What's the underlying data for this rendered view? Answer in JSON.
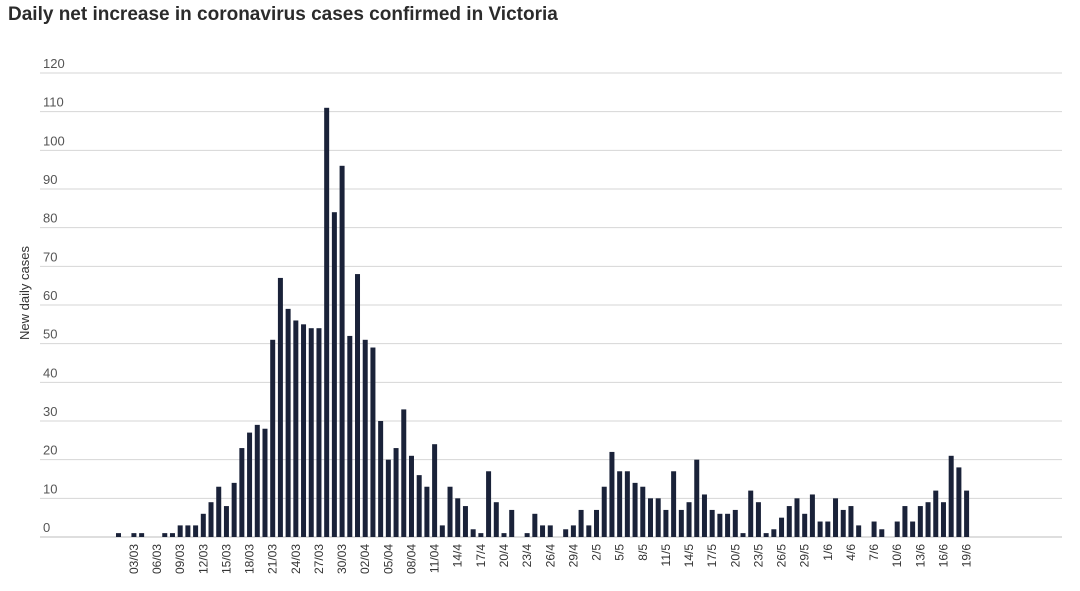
{
  "chart_data": {
    "type": "bar",
    "title": "Daily net increase in coronavirus cases confirmed in Victoria",
    "ylabel": "New daily cases",
    "xlabel": "",
    "ylim": [
      0,
      120
    ],
    "yticks": [
      0,
      10,
      20,
      30,
      40,
      50,
      60,
      70,
      80,
      90,
      100,
      110,
      120
    ],
    "grid": true,
    "bar_color": "#1a2239",
    "categories": [
      "01/03",
      "02/03",
      "03/03",
      "04/03",
      "05/03",
      "06/03",
      "07/03",
      "08/03",
      "09/03",
      "10/03",
      "11/03",
      "12/03",
      "13/03",
      "14/03",
      "15/03",
      "16/03",
      "17/03",
      "18/03",
      "19/03",
      "20/03",
      "21/03",
      "22/03",
      "23/03",
      "24/03",
      "25/03",
      "26/03",
      "27/03",
      "28/03",
      "29/03",
      "30/03",
      "31/03",
      "01/04",
      "02/04",
      "03/04",
      "04/04",
      "05/04",
      "06/04",
      "07/04",
      "08/04",
      "09/04",
      "10/04",
      "11/04",
      "12/04",
      "13/04",
      "14/4",
      "15/4",
      "16/4",
      "17/4",
      "18/4",
      "19/4",
      "20/4",
      "21/4",
      "22/4",
      "23/4",
      "24/4",
      "25/4",
      "26/4",
      "27/4",
      "28/4",
      "29/4",
      "30/4",
      "1/5",
      "2/5",
      "3/5",
      "4/5",
      "5/5",
      "6/5",
      "7/5",
      "8/5",
      "9/5",
      "10/5",
      "11/5",
      "12/5",
      "13/5",
      "14/5",
      "15/5",
      "16/5",
      "17/5",
      "18/5",
      "19/5",
      "20/5",
      "21/5",
      "22/5",
      "23/5",
      "24/5",
      "25/5",
      "26/5",
      "27/5",
      "28/5",
      "29/5",
      "30/5",
      "31/5",
      "1/6",
      "2/6",
      "3/6",
      "4/6",
      "5/6",
      "6/6",
      "7/6",
      "8/6",
      "9/6",
      "10/6",
      "11/6",
      "12/6",
      "13/6",
      "14/6",
      "15/6",
      "16/6",
      "17/6",
      "18/6",
      "19/6"
    ],
    "x_tick_labels": [
      "03/03",
      "06/03",
      "09/03",
      "12/03",
      "15/03",
      "18/03",
      "21/03",
      "24/03",
      "27/03",
      "30/03",
      "02/04",
      "05/04",
      "08/04",
      "11/04",
      "14/4",
      "17/4",
      "20/4",
      "23/4",
      "26/4",
      "29/4",
      "2/5",
      "5/5",
      "8/5",
      "11/5",
      "14/5",
      "17/5",
      "20/5",
      "23/5",
      "26/5",
      "29/5",
      "1/6",
      "4/6",
      "7/6",
      "10/6",
      "13/6",
      "16/6",
      "19/6"
    ],
    "values": [
      1,
      0,
      1,
      1,
      0,
      0,
      1,
      1,
      3,
      3,
      3,
      6,
      9,
      13,
      8,
      14,
      23,
      27,
      29,
      28,
      51,
      67,
      59,
      56,
      55,
      54,
      54,
      111,
      84,
      96,
      52,
      68,
      51,
      49,
      30,
      20,
      23,
      33,
      21,
      16,
      13,
      24,
      3,
      13,
      10,
      8,
      2,
      1,
      17,
      9,
      1,
      7,
      0,
      1,
      6,
      3,
      3,
      0,
      2,
      3,
      7,
      3,
      7,
      13,
      22,
      17,
      17,
      14,
      13,
      10,
      10,
      7,
      17,
      7,
      9,
      20,
      11,
      7,
      6,
      6,
      7,
      1,
      12,
      9,
      1,
      2,
      5,
      8,
      10,
      6,
      11,
      4,
      4,
      10,
      7,
      8,
      3,
      0,
      4,
      2,
      0,
      4,
      8,
      4,
      8,
      9,
      12,
      9,
      21,
      18,
      12
    ]
  }
}
